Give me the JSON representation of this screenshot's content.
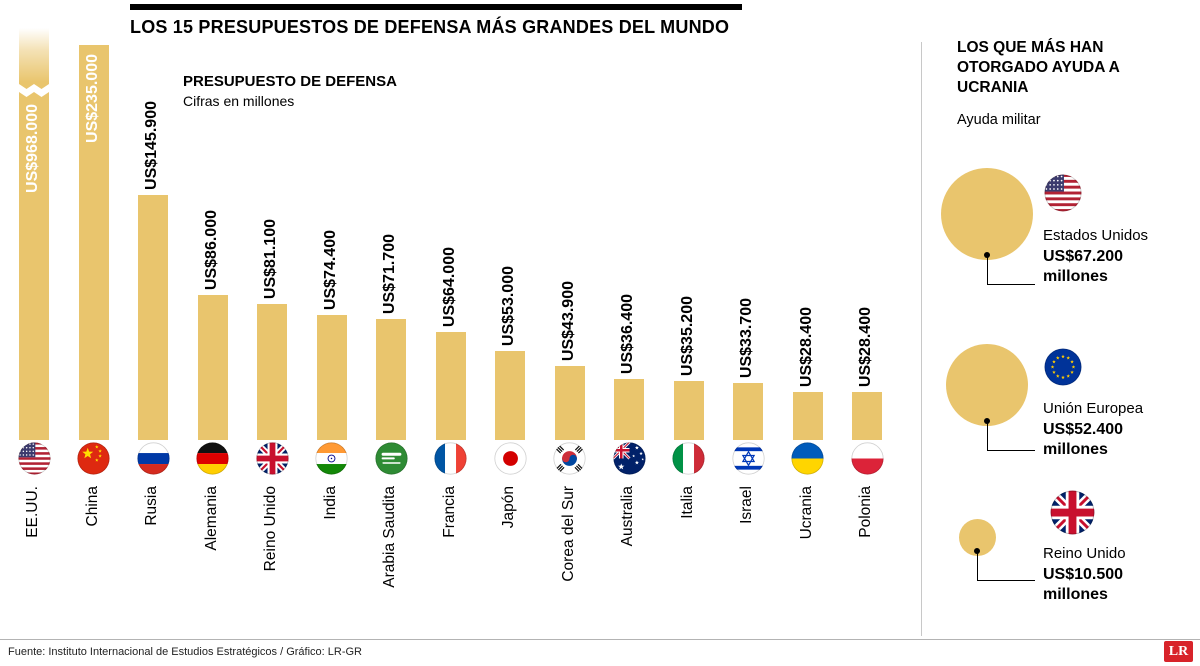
{
  "chart_data": [
    {
      "type": "bar",
      "title": "LOS 15 PRESUPUESTOS DE DEFENSA MÁS GRANDES DEL MUNDO",
      "subtitle": "PRESUPUESTO DE DEFENSA",
      "note": "Cifras en millones",
      "categories": [
        "EE.UU.",
        "China",
        "Rusia",
        "Alemania",
        "Reino Unido",
        "India",
        "Arabia Saudita",
        "Francia",
        "Japón",
        "Corea del Sur",
        "Australia",
        "Italia",
        "Israel",
        "Ucrania",
        "Polonia"
      ],
      "values": [
        968000,
        235000,
        145900,
        86000,
        81100,
        74400,
        71700,
        64000,
        53000,
        43900,
        36400,
        35200,
        33700,
        28400,
        28400
      ],
      "value_labels": [
        "US$968.000",
        "US$235.000",
        "US$145.900",
        "US$86.000",
        "US$81.100",
        "US$74.400",
        "US$71.700",
        "US$64.000",
        "US$53.000",
        "US$43.900",
        "US$36.400",
        "US$35.200",
        "US$33.700",
        "US$28.400",
        "US$28.400"
      ],
      "flags": [
        "usa",
        "china",
        "russia",
        "germany",
        "uk",
        "india",
        "saudi",
        "france",
        "japan",
        "korea",
        "australia",
        "italy",
        "israel",
        "ukraine",
        "poland"
      ],
      "bar_color": "#E9C56D",
      "axis_break_first_bar": true,
      "grid": false,
      "legend": false,
      "ylim": [
        0,
        250000
      ]
    },
    {
      "type": "bubble",
      "title": "LOS QUE MÁS HAN OTORGADO AYUDA A UCRANIA",
      "subtitle": "Ayuda militar",
      "items": [
        {
          "label": "Estados Unidos",
          "value": 67200,
          "value_label": "US$67.200",
          "unit": "millones",
          "flag": "usa"
        },
        {
          "label": "Unión Europea",
          "value": 52400,
          "value_label": "US$52.400",
          "unit": "millones",
          "flag": "eu"
        },
        {
          "label": "Reino Unido",
          "value": 10500,
          "value_label": "US$10.500",
          "unit": "millones",
          "flag": "uk"
        }
      ]
    }
  ],
  "footer": {
    "source": "Fuente: Instituto Internacional de Estudios Estratégicos / Gráfico: LR-GR",
    "logo_text": "LR"
  },
  "colors": {
    "bar": "#E9C56D",
    "logo_red": "#D8232A"
  }
}
